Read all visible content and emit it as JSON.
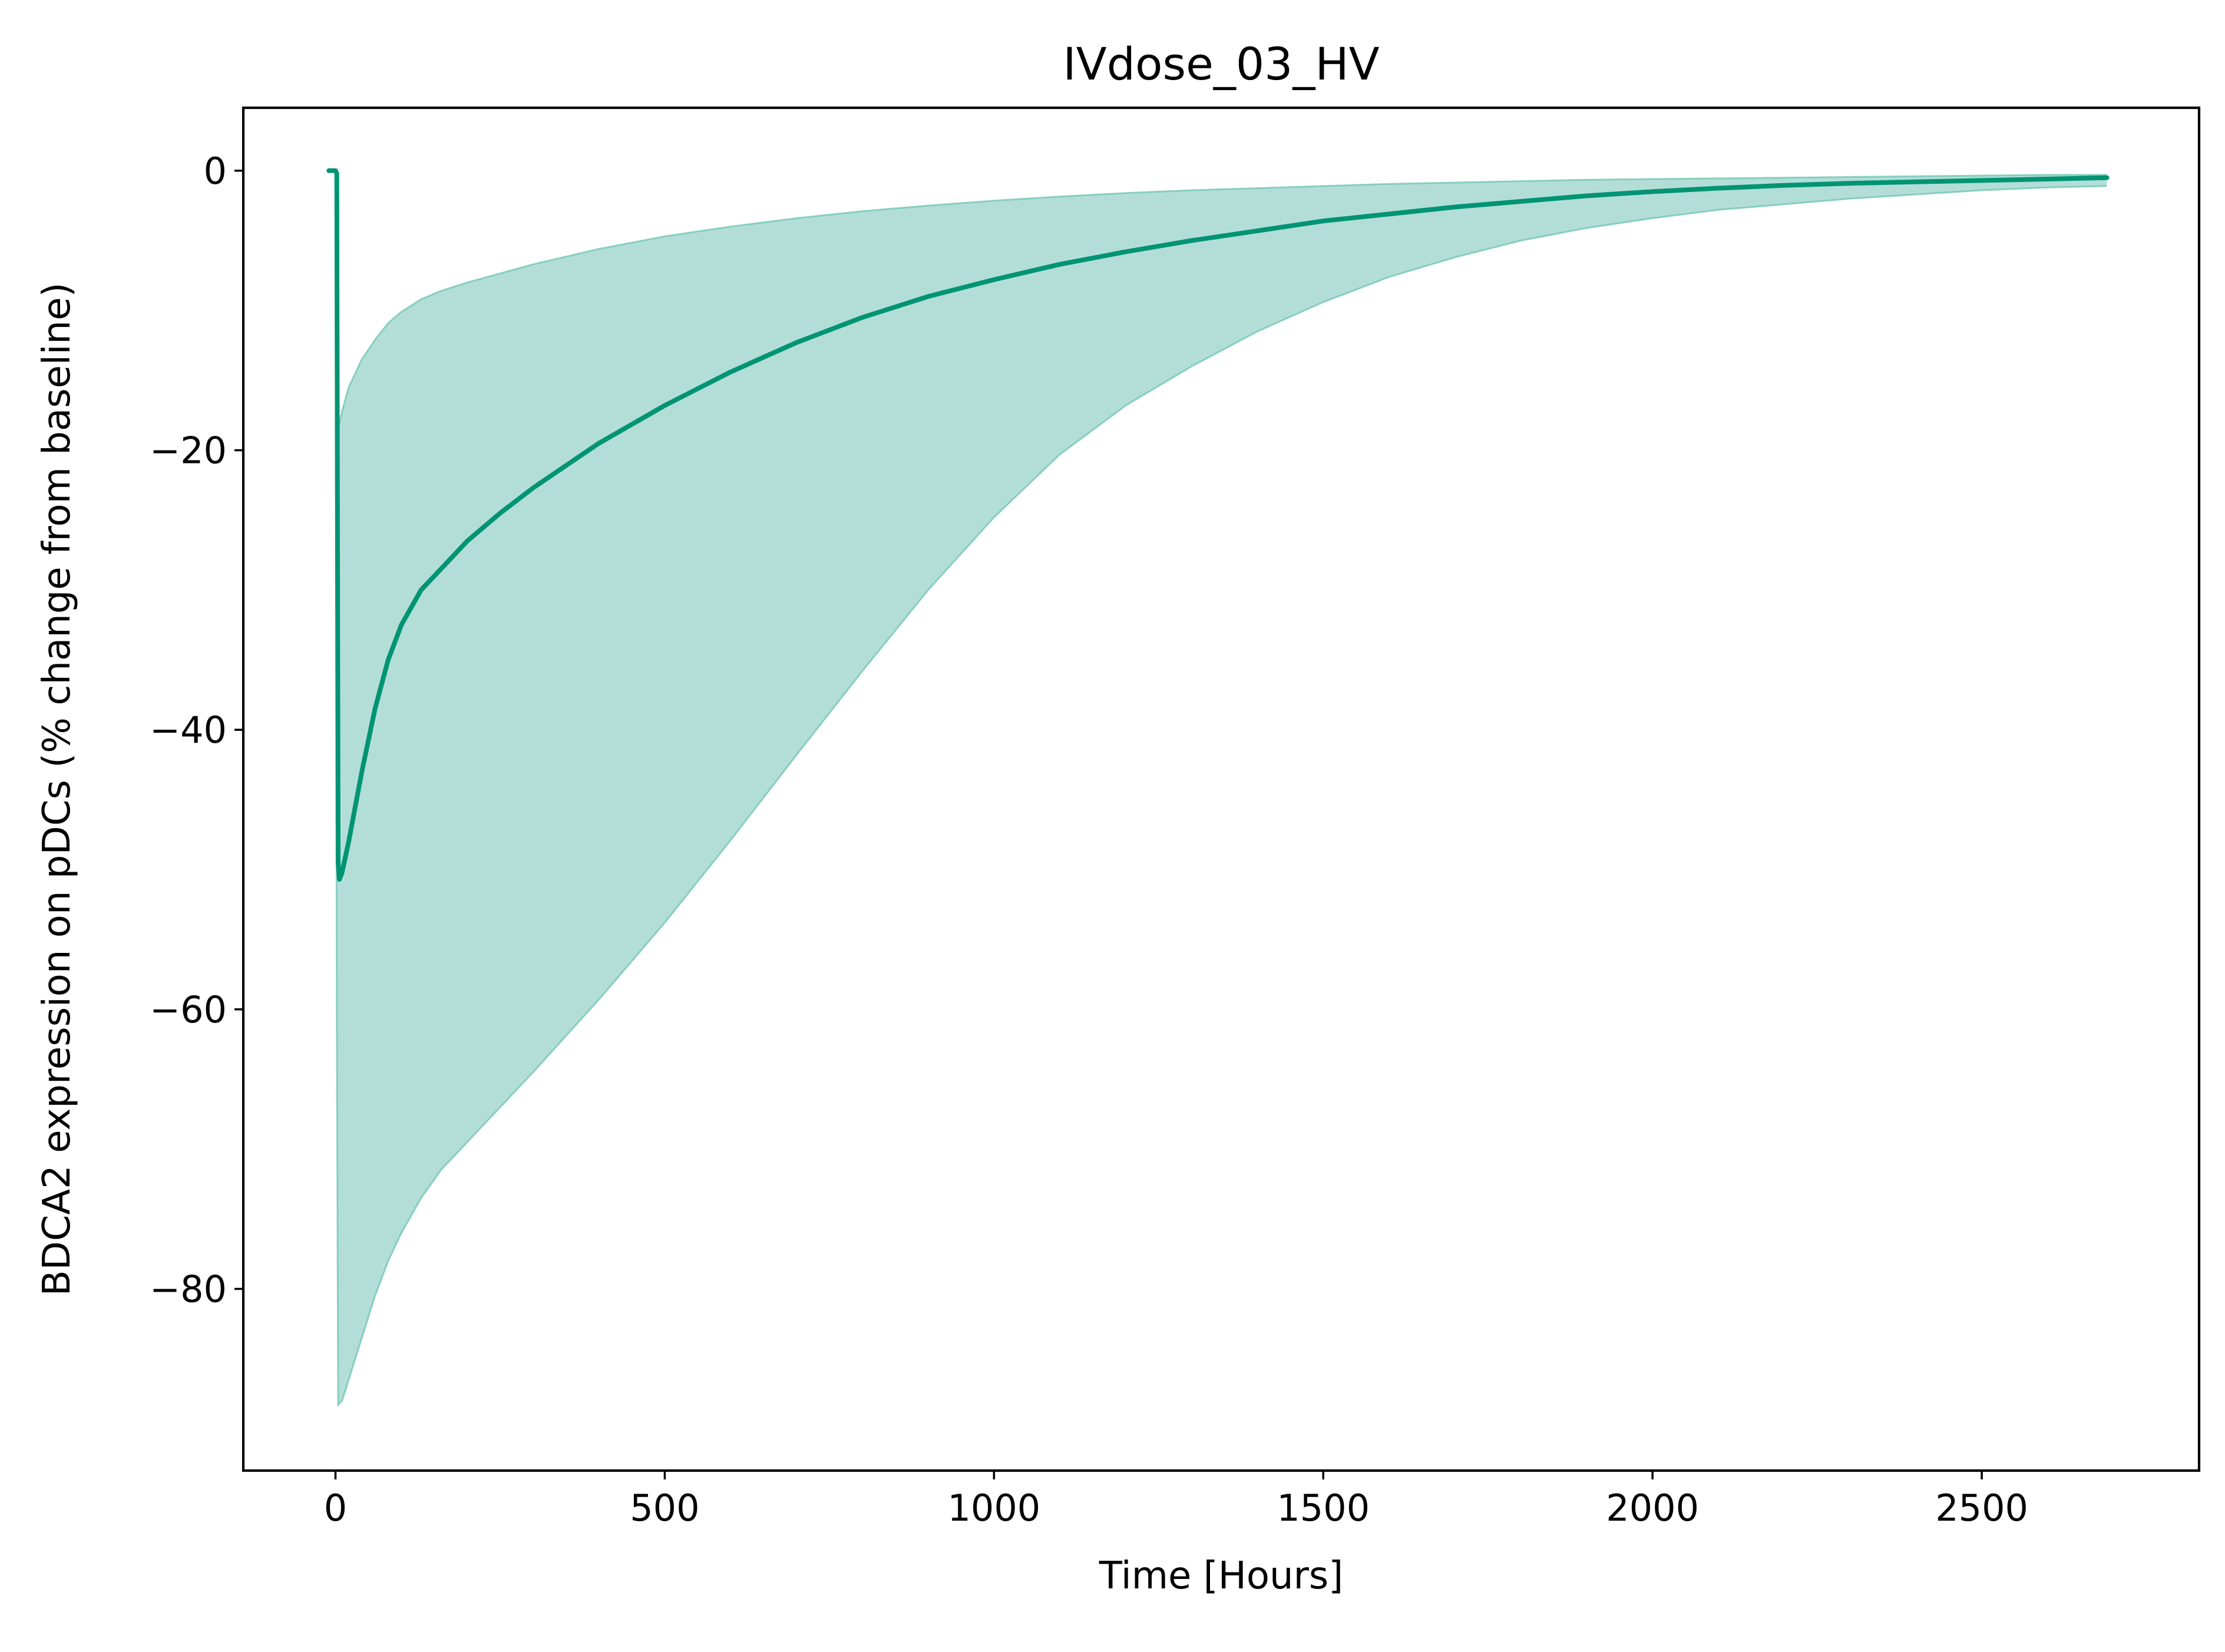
{
  "chart_data": {
    "type": "line",
    "title": "IVdose_03_HV",
    "xlabel": "Time [Hours]",
    "ylabel": "BDCA2 expression on pDCs (% change from baseline)",
    "xlim": [
      -140,
      2830
    ],
    "ylim": [
      -93,
      4.5
    ],
    "xticks": [
      0,
      500,
      1000,
      1500,
      2000,
      2500
    ],
    "yticks": [
      0,
      -20,
      -40,
      -60,
      -80
    ],
    "grid": false,
    "colors": {
      "line": "#009473",
      "band_fill": "#b3ded8",
      "band_edge": "#66c2ad"
    },
    "series": [
      {
        "role": "median",
        "x": [
          -10,
          -2,
          0,
          2,
          4,
          6,
          10,
          20,
          40,
          60,
          80,
          100,
          130,
          160,
          200,
          250,
          300,
          400,
          500,
          600,
          700,
          800,
          900,
          1000,
          1100,
          1200,
          1300,
          1400,
          1500,
          1600,
          1700,
          1800,
          1900,
          2000,
          2100,
          2200,
          2300,
          2400,
          2500,
          2600,
          2690
        ],
        "y": [
          0,
          0,
          0,
          -0.2,
          -49.5,
          -50.7,
          -50.2,
          -48,
          -43,
          -38.5,
          -35,
          -32.5,
          -30,
          -28.5,
          -26.5,
          -24.5,
          -22.7,
          -19.5,
          -16.8,
          -14.4,
          -12.3,
          -10.5,
          -9,
          -7.8,
          -6.7,
          -5.8,
          -5,
          -4.3,
          -3.6,
          -3.1,
          -2.6,
          -2.2,
          -1.8,
          -1.5,
          -1.25,
          -1.05,
          -0.9,
          -0.8,
          -0.7,
          -0.6,
          -0.5
        ]
      },
      {
        "role": "interval",
        "x": [
          0,
          2,
          4,
          10,
          20,
          40,
          60,
          80,
          100,
          130,
          160,
          200,
          300,
          400,
          500,
          600,
          700,
          800,
          900,
          1000,
          1100,
          1200,
          1300,
          1400,
          1500,
          1600,
          1700,
          1800,
          1900,
          2000,
          2100,
          2200,
          2300,
          2400,
          2500,
          2600,
          2690
        ],
        "upper": [
          -0.5,
          -10,
          -18.5,
          -17.2,
          -15.5,
          -13.5,
          -12.1,
          -10.9,
          -10.1,
          -9.2,
          -8.6,
          -8.0,
          -6.7,
          -5.6,
          -4.7,
          -4.0,
          -3.4,
          -2.9,
          -2.5,
          -2.15,
          -1.85,
          -1.6,
          -1.4,
          -1.25,
          -1.1,
          -0.95,
          -0.85,
          -0.75,
          -0.65,
          -0.6,
          -0.55,
          -0.5,
          -0.45,
          -0.4,
          -0.35,
          -0.3,
          -0.3
        ],
        "lower": [
          -0.5,
          -60,
          -88.3,
          -88.0,
          -86.5,
          -83.5,
          -80.5,
          -78.0,
          -76.0,
          -73.5,
          -71.5,
          -69.5,
          -64.5,
          -59.3,
          -53.8,
          -47.9,
          -41.8,
          -35.8,
          -30.0,
          -24.8,
          -20.3,
          -16.8,
          -14.0,
          -11.5,
          -9.4,
          -7.6,
          -6.2,
          -5.0,
          -4.1,
          -3.4,
          -2.8,
          -2.4,
          -2.0,
          -1.7,
          -1.4,
          -1.2,
          -1.1
        ]
      }
    ]
  }
}
